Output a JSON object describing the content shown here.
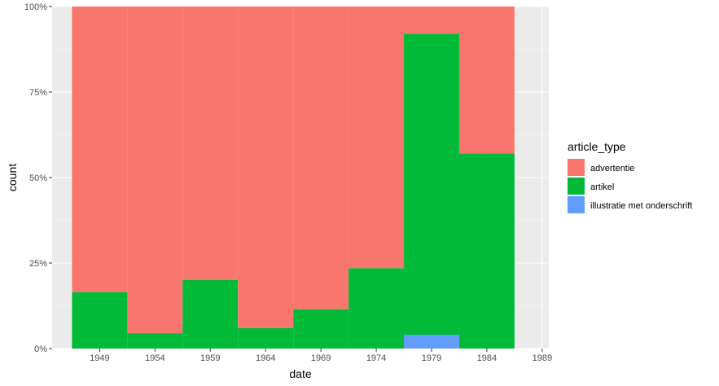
{
  "chart_data": {
    "type": "bar",
    "position": "fill",
    "xlabel": "date",
    "ylabel": "count",
    "x_ticks": [
      "1949",
      "1954",
      "1959",
      "1964",
      "1969",
      "1974",
      "1979",
      "1984",
      "1989"
    ],
    "y_ticks": [
      "0%",
      "25%",
      "50%",
      "75%",
      "100%"
    ],
    "ylim": [
      0,
      1
    ],
    "xlim": [
      1944.7,
      1989.6
    ],
    "bin_width": 5,
    "grid": true,
    "legend": {
      "title": "article_type",
      "placement": "right",
      "entries": [
        {
          "label": "advertentie",
          "color": "#F8766D"
        },
        {
          "label": "artikel",
          "color": "#00BA38"
        },
        {
          "label": "illustratie met onderschrift",
          "color": "#619CFF"
        }
      ]
    },
    "bins": [
      {
        "start": 1946.5,
        "end": 1951.5,
        "artikel": 0.165,
        "illustratie": 0.0,
        "advertentie": 0.835
      },
      {
        "start": 1951.5,
        "end": 1956.5,
        "artikel": 0.045,
        "illustratie": 0.0,
        "advertentie": 0.955
      },
      {
        "start": 1956.5,
        "end": 1961.5,
        "artikel": 0.2,
        "illustratie": 0.0,
        "advertentie": 0.8
      },
      {
        "start": 1961.5,
        "end": 1966.5,
        "artikel": 0.06,
        "illustratie": 0.0,
        "advertentie": 0.94
      },
      {
        "start": 1966.5,
        "end": 1971.5,
        "artikel": 0.115,
        "illustratie": 0.0,
        "advertentie": 0.885
      },
      {
        "start": 1971.5,
        "end": 1976.5,
        "artikel": 0.235,
        "illustratie": 0.0,
        "advertentie": 0.765
      },
      {
        "start": 1976.5,
        "end": 1981.5,
        "artikel": 0.88,
        "illustratie": 0.04,
        "advertentie": 0.08
      },
      {
        "start": 1981.5,
        "end": 1986.5,
        "artikel": 0.57,
        "illustratie": 0.0,
        "advertentie": 0.43
      }
    ],
    "colors": {
      "advertentie": "#F8766D",
      "artikel": "#00BA38",
      "illustratie": "#619CFF",
      "panel": "#EBEBEB",
      "grid_major": "#FFFFFF"
    }
  }
}
